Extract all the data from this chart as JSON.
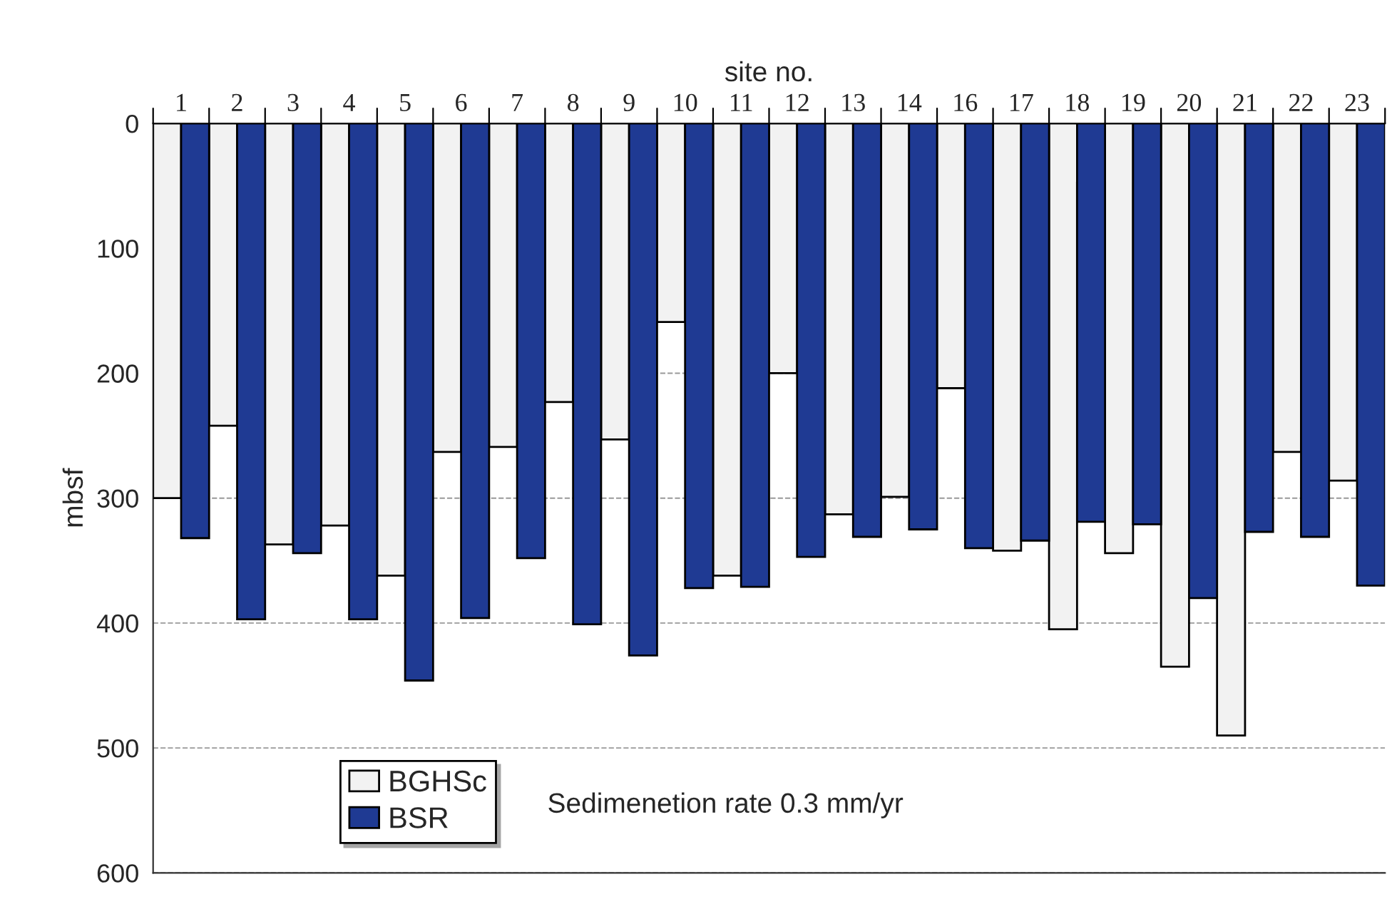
{
  "chart_data": {
    "type": "bar",
    "xlabel": "site no.",
    "ylabel": "mbsf",
    "categories": [
      "1",
      "2",
      "3",
      "4",
      "5",
      "6",
      "7",
      "8",
      "9",
      "10",
      "11",
      "12",
      "13",
      "14",
      "16",
      "17",
      "18",
      "19",
      "20",
      "21",
      "22",
      "23"
    ],
    "series": [
      {
        "name": "BGHSc",
        "color": "#f2f2f2",
        "values": [
          300,
          242,
          337,
          322,
          362,
          263,
          259,
          223,
          253,
          159,
          362,
          200,
          313,
          299,
          212,
          342,
          405,
          344,
          435,
          490,
          263,
          286
        ]
      },
      {
        "name": "BSR",
        "color": "#1f3a93",
        "values": [
          332,
          397,
          344,
          397,
          446,
          396,
          348,
          401,
          426,
          372,
          371,
          347,
          331,
          325,
          340,
          334,
          319,
          321,
          380,
          327,
          331,
          370
        ]
      }
    ],
    "ylim": [
      600,
      0
    ],
    "yticks": [
      0,
      100,
      200,
      300,
      400,
      500,
      600
    ],
    "grid": "y",
    "legend": "bottom left",
    "annotations": [
      "Sedimenetion rate 0.3 mm/yr"
    ]
  }
}
